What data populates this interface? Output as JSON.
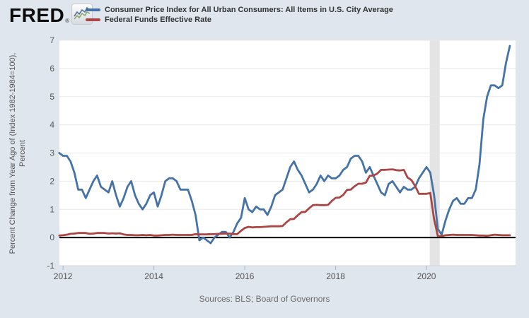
{
  "brand": {
    "logo_text": "FRED",
    "registered_mark": "®",
    "icon": "fred-sparkline-icon"
  },
  "legend": {
    "items": [
      {
        "label": "Consumer Price Index for All Urban Consumers: All Items in U.S. City Average",
        "color": "#4572a7"
      },
      {
        "label": "Federal Funds Effective Rate",
        "color": "#aa4643"
      }
    ]
  },
  "axes": {
    "ylabel_line1": "Percent Change from Year Ago of (Index 1982-1984=100),",
    "ylabel_line2": "Percent"
  },
  "footer": {
    "sources_text": "Sources: BLS; Board of Governors"
  },
  "colors": {
    "background": "#e0e6ee",
    "plot_background": "#ffffff",
    "gridline": "#e8e8e8",
    "zero_line": "#000000",
    "axis_text": "#555555",
    "tick": "#a9b4c2",
    "plot_bottom_edge": "#ccd4df",
    "recession_band": "#e4e4e4",
    "cpi_line": "#4572a7",
    "fedfunds_line": "#aa4643"
  },
  "chart_data": {
    "type": "line",
    "title": "",
    "ylabel": "Percent Change from Year Ago of (Index 1982-1984=100), Percent",
    "xlabel": "",
    "xlim": [
      2011.92,
      2021.96
    ],
    "ylim": [
      -1,
      7
    ],
    "xticks": [
      2012,
      2014,
      2016,
      2018,
      2020
    ],
    "yticks": [
      -1,
      0,
      1,
      2,
      3,
      4,
      5,
      6,
      7
    ],
    "grid": true,
    "legend_position": "top-left header",
    "recession_band": {
      "x_start": 2020.07,
      "x_end": 2020.29
    },
    "frequency": "monthly",
    "series": [
      {
        "name": "Consumer Price Index for All Urban Consumers: All Items in U.S. City Average",
        "color": "#4572a7",
        "start_year": 2011,
        "start_month": 12,
        "values": [
          3.0,
          2.9,
          2.9,
          2.7,
          2.3,
          1.7,
          1.7,
          1.4,
          1.7,
          2.0,
          2.2,
          1.8,
          1.7,
          1.6,
          2.0,
          1.5,
          1.1,
          1.4,
          1.8,
          2.0,
          1.5,
          1.2,
          1.0,
          1.2,
          1.5,
          1.6,
          1.1,
          1.5,
          2.0,
          2.1,
          2.1,
          2.0,
          1.7,
          1.7,
          1.7,
          1.3,
          0.8,
          -0.1,
          0.0,
          -0.1,
          -0.2,
          0.0,
          0.1,
          0.2,
          0.2,
          0.0,
          0.2,
          0.5,
          0.7,
          1.4,
          1.0,
          0.9,
          1.1,
          1.0,
          1.0,
          0.8,
          1.1,
          1.5,
          1.6,
          1.7,
          2.1,
          2.5,
          2.7,
          2.4,
          2.2,
          1.9,
          1.6,
          1.7,
          1.9,
          2.2,
          2.0,
          2.2,
          2.1,
          2.1,
          2.2,
          2.4,
          2.5,
          2.8,
          2.9,
          2.9,
          2.7,
          2.3,
          2.5,
          2.2,
          1.9,
          1.6,
          1.5,
          1.9,
          2.0,
          1.8,
          1.6,
          1.8,
          1.7,
          1.7,
          1.8,
          2.1,
          2.3,
          2.5,
          2.3,
          1.5,
          0.3,
          0.1,
          0.6,
          1.0,
          1.3,
          1.4,
          1.2,
          1.2,
          1.4,
          1.4,
          1.7,
          2.6,
          4.2,
          5.0,
          5.4,
          5.4,
          5.3,
          5.4,
          6.2,
          6.8
        ]
      },
      {
        "name": "Federal Funds Effective Rate",
        "color": "#aa4643",
        "start_year": 2011,
        "start_month": 12,
        "values": [
          0.07,
          0.08,
          0.1,
          0.13,
          0.14,
          0.16,
          0.16,
          0.16,
          0.13,
          0.14,
          0.16,
          0.16,
          0.16,
          0.14,
          0.15,
          0.14,
          0.15,
          0.11,
          0.09,
          0.09,
          0.08,
          0.08,
          0.09,
          0.08,
          0.09,
          0.07,
          0.07,
          0.08,
          0.09,
          0.09,
          0.1,
          0.09,
          0.09,
          0.09,
          0.09,
          0.09,
          0.12,
          0.11,
          0.11,
          0.11,
          0.12,
          0.12,
          0.13,
          0.13,
          0.14,
          0.14,
          0.12,
          0.12,
          0.24,
          0.34,
          0.38,
          0.36,
          0.37,
          0.37,
          0.38,
          0.39,
          0.4,
          0.4,
          0.4,
          0.41,
          0.54,
          0.65,
          0.66,
          0.79,
          0.9,
          0.91,
          1.04,
          1.15,
          1.16,
          1.15,
          1.15,
          1.16,
          1.3,
          1.41,
          1.42,
          1.51,
          1.69,
          1.7,
          1.82,
          1.91,
          1.91,
          1.95,
          2.19,
          2.2,
          2.27,
          2.4,
          2.4,
          2.41,
          2.42,
          2.39,
          2.38,
          2.4,
          2.13,
          2.04,
          1.83,
          1.55,
          1.55,
          1.55,
          1.58,
          0.65,
          0.05,
          0.05,
          0.08,
          0.09,
          0.1,
          0.09,
          0.09,
          0.09,
          0.09,
          0.09,
          0.08,
          0.07,
          0.07,
          0.06,
          0.08,
          0.1,
          0.09,
          0.08,
          0.08,
          0.08
        ]
      }
    ]
  }
}
